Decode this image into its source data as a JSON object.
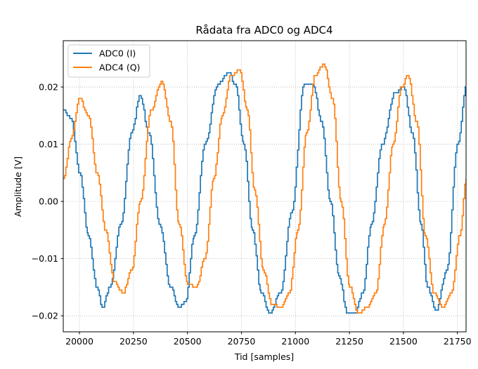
{
  "chart_data": {
    "type": "line",
    "title": "Rådata fra ADC0 og ADC4",
    "xlabel": "Tid [samples]",
    "ylabel": "Amplitude [V]",
    "xlim": [
      19925,
      21790
    ],
    "ylim": [
      -0.0228,
      0.0281
    ],
    "xticks": [
      20000,
      20250,
      20500,
      20750,
      21000,
      21250,
      21500,
      21750
    ],
    "yticks": [
      -0.02,
      -0.01,
      0.0,
      0.01,
      0.02
    ],
    "xtick_labels": [
      "20000",
      "20250",
      "20500",
      "20750",
      "21000",
      "21250",
      "21500",
      "21750"
    ],
    "ytick_labels": [
      "−0.02",
      "−0.01",
      "0.00",
      "0.01",
      "0.02"
    ],
    "grid": true,
    "legend_position": "top-left",
    "series": [
      {
        "name": "ADC0 (I)",
        "color": "#1f77b4",
        "x": [
          19925,
          19960,
          20000,
          20040,
          20080,
          20105,
          20140,
          20190,
          20240,
          20280,
          20320,
          20370,
          20420,
          20460,
          20490,
          20530,
          20580,
          20640,
          20690,
          20720,
          20760,
          20800,
          20840,
          20880,
          20930,
          20980,
          21040,
          21080,
          21120,
          21160,
          21200,
          21240,
          21275,
          21310,
          21350,
          21400,
          21460,
          21500,
          21540,
          21580,
          21610,
          21650,
          21700,
          21750,
          21790
        ],
        "values": [
          0.016,
          0.0145,
          0.005,
          -0.006,
          -0.015,
          -0.0185,
          -0.015,
          -0.004,
          0.012,
          0.0185,
          0.012,
          -0.004,
          -0.015,
          -0.0185,
          -0.0175,
          -0.006,
          0.01,
          0.0205,
          0.0225,
          0.0205,
          0.01,
          -0.005,
          -0.016,
          -0.0195,
          -0.016,
          -0.002,
          0.0205,
          0.0205,
          0.014,
          0.0,
          -0.013,
          -0.0195,
          -0.0195,
          -0.016,
          -0.004,
          0.01,
          0.019,
          0.02,
          0.012,
          -0.004,
          -0.015,
          -0.019,
          -0.012,
          0.01,
          0.02
        ]
      },
      {
        "name": "ADC4 (Q)",
        "color": "#ff7f0e",
        "x": [
          19925,
          19960,
          20000,
          20040,
          20080,
          20120,
          20160,
          20200,
          20240,
          20280,
          20330,
          20380,
          20420,
          20460,
          20500,
          20540,
          20580,
          20620,
          20660,
          20700,
          20740,
          20775,
          20810,
          20850,
          20890,
          20930,
          20970,
          21010,
          21050,
          21090,
          21130,
          21170,
          21210,
          21250,
          21290,
          21330,
          21370,
          21410,
          21450,
          21490,
          21520,
          21560,
          21600,
          21640,
          21680,
          21720,
          21760,
          21790
        ],
        "values": [
          0.004,
          0.011,
          0.018,
          0.015,
          0.005,
          -0.005,
          -0.014,
          -0.016,
          -0.012,
          0.0,
          0.016,
          0.021,
          0.014,
          -0.004,
          -0.0145,
          -0.015,
          -0.01,
          0.004,
          0.015,
          0.022,
          0.023,
          0.016,
          0.002,
          -0.012,
          -0.018,
          -0.0185,
          -0.016,
          -0.005,
          0.012,
          0.022,
          0.024,
          0.018,
          0.0,
          -0.015,
          -0.0195,
          -0.0185,
          -0.016,
          -0.004,
          0.01,
          0.02,
          0.022,
          0.014,
          -0.006,
          -0.016,
          -0.0185,
          -0.016,
          -0.006,
          0.004
        ]
      }
    ]
  }
}
